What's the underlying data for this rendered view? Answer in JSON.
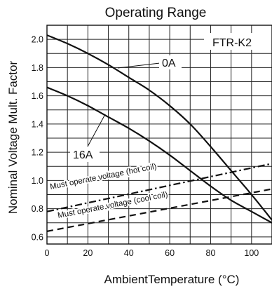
{
  "chart_data": {
    "type": "line",
    "title": "Operating Range",
    "xlabel": "AmbientTemperature (°C)",
    "ylabel": "Nominal Voltage Mult. Factor",
    "xlim": [
      0,
      110
    ],
    "ylim": [
      0.55,
      2.1
    ],
    "x_ticks": [
      "0",
      "20",
      "40",
      "60",
      "80",
      "100"
    ],
    "y_ticks": [
      "0.6",
      "0.8",
      "1.0",
      "1.2",
      "1.4",
      "1.6",
      "1.8",
      "2.0"
    ],
    "grid": true,
    "model_label": "FTR-K2",
    "series": [
      {
        "name": "0A",
        "style": "solid",
        "x": [
          0,
          10,
          20,
          30,
          40,
          50,
          60,
          70,
          80,
          90,
          100,
          110
        ],
        "y": [
          2.03,
          1.97,
          1.9,
          1.82,
          1.73,
          1.64,
          1.53,
          1.4,
          1.24,
          1.07,
          0.9,
          0.72
        ]
      },
      {
        "name": "16A",
        "style": "solid",
        "x": [
          0,
          10,
          20,
          30,
          40,
          50,
          60,
          70,
          80,
          90,
          100,
          110
        ],
        "y": [
          1.66,
          1.6,
          1.53,
          1.45,
          1.37,
          1.28,
          1.18,
          1.07,
          0.96,
          0.86,
          0.78,
          0.7
        ]
      },
      {
        "name": "Must operate voltage (hot coil)",
        "style": "dash-dot",
        "x": [
          0,
          110
        ],
        "y": [
          0.78,
          1.12
        ]
      },
      {
        "name": "Must operate voltage (cool coil)",
        "style": "dashed",
        "x": [
          0,
          110
        ],
        "y": [
          0.64,
          0.94
        ]
      }
    ]
  }
}
